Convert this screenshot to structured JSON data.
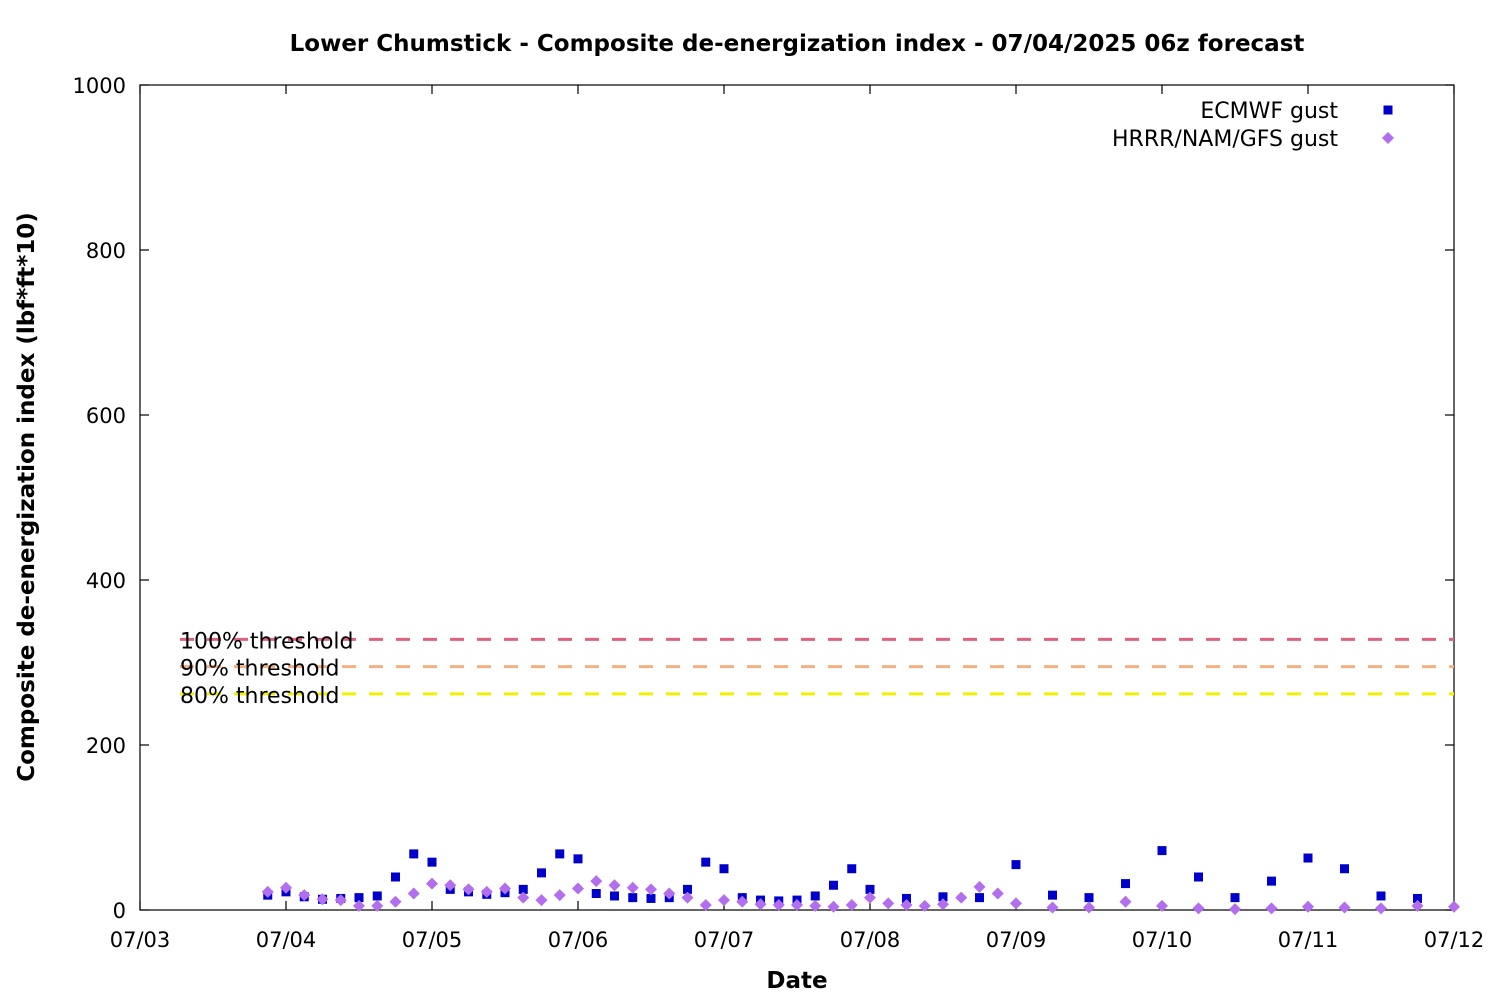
{
  "chart_data": {
    "type": "scatter",
    "title": "Lower Chumstick - Composite de-energization index - 07/04/2025 06z forecast",
    "xlabel": "Date",
    "ylabel": "Composite de-energization index (lbf*ft*10)",
    "xlim": [
      "07/03",
      "07/12"
    ],
    "ylim": [
      0,
      1000
    ],
    "x_ticks": [
      "07/03",
      "07/04",
      "07/05",
      "07/06",
      "07/07",
      "07/08",
      "07/09",
      "07/10",
      "07/11",
      "07/12"
    ],
    "y_ticks": [
      0,
      200,
      400,
      600,
      800,
      1000
    ],
    "grid": false,
    "legend_position": "top-right",
    "thresholds": [
      {
        "label": "100% threshold",
        "value": 328,
        "color": "#e06080"
      },
      {
        "label": "90% threshold",
        "value": 295,
        "color": "#f4b080"
      },
      {
        "label": "80% threshold",
        "value": 262,
        "color": "#f0f000"
      }
    ],
    "series": [
      {
        "name": "ECMWF gust",
        "color": "#0000cc",
        "marker": "square",
        "x": [
          "07/03 21:00",
          "07/04 00:00",
          "07/04 03:00",
          "07/04 06:00",
          "07/04 09:00",
          "07/04 12:00",
          "07/04 15:00",
          "07/04 18:00",
          "07/04 21:00",
          "07/05 00:00",
          "07/05 03:00",
          "07/05 06:00",
          "07/05 09:00",
          "07/05 12:00",
          "07/05 15:00",
          "07/05 18:00",
          "07/05 21:00",
          "07/06 00:00",
          "07/06 03:00",
          "07/06 06:00",
          "07/06 09:00",
          "07/06 12:00",
          "07/06 15:00",
          "07/06 18:00",
          "07/06 21:00",
          "07/07 00:00",
          "07/07 03:00",
          "07/07 06:00",
          "07/07 09:00",
          "07/07 12:00",
          "07/07 15:00",
          "07/07 18:00",
          "07/07 21:00",
          "07/08 00:00",
          "07/08 06:00",
          "07/08 12:00",
          "07/08 18:00",
          "07/09 00:00",
          "07/09 06:00",
          "07/09 12:00",
          "07/09 18:00",
          "07/10 00:00",
          "07/10 06:00",
          "07/10 12:00",
          "07/10 18:00",
          "07/11 00:00",
          "07/11 06:00",
          "07/11 12:00",
          "07/11 18:00"
        ],
        "values": [
          18,
          22,
          16,
          13,
          14,
          15,
          17,
          40,
          68,
          58,
          25,
          22,
          19,
          21,
          25,
          45,
          68,
          62,
          20,
          17,
          15,
          14,
          15,
          25,
          58,
          50,
          15,
          12,
          11,
          12,
          17,
          30,
          50,
          25,
          14,
          16,
          15,
          55,
          18,
          15,
          32,
          72,
          40,
          15,
          35,
          63,
          50,
          17,
          14
        ]
      },
      {
        "name": "HRRR/NAM/GFS gust",
        "color": "#b36ef0",
        "marker": "diamond",
        "x": [
          "07/03 21:00",
          "07/04 00:00",
          "07/04 03:00",
          "07/04 06:00",
          "07/04 09:00",
          "07/04 12:00",
          "07/04 15:00",
          "07/04 18:00",
          "07/04 21:00",
          "07/05 00:00",
          "07/05 03:00",
          "07/05 06:00",
          "07/05 09:00",
          "07/05 12:00",
          "07/05 15:00",
          "07/05 18:00",
          "07/05 21:00",
          "07/06 00:00",
          "07/06 03:00",
          "07/06 06:00",
          "07/06 09:00",
          "07/06 12:00",
          "07/06 15:00",
          "07/06 18:00",
          "07/06 21:00",
          "07/07 00:00",
          "07/07 03:00",
          "07/07 06:00",
          "07/07 09:00",
          "07/07 12:00",
          "07/07 15:00",
          "07/07 18:00",
          "07/07 21:00",
          "07/08 00:00",
          "07/08 03:00",
          "07/08 06:00",
          "07/08 09:00",
          "07/08 12:00",
          "07/08 15:00",
          "07/08 18:00",
          "07/08 21:00",
          "07/09 00:00",
          "07/09 06:00",
          "07/09 12:00",
          "07/09 18:00",
          "07/10 00:00",
          "07/10 06:00",
          "07/10 12:00",
          "07/10 18:00",
          "07/11 00:00",
          "07/11 06:00",
          "07/11 12:00",
          "07/11 18:00",
          "07/12 00:00"
        ],
        "values": [
          22,
          27,
          18,
          13,
          12,
          5,
          5,
          10,
          20,
          32,
          30,
          25,
          22,
          26,
          15,
          12,
          18,
          26,
          35,
          30,
          27,
          25,
          20,
          15,
          6,
          12,
          10,
          7,
          6,
          6,
          5,
          4,
          6,
          15,
          8,
          6,
          5,
          7,
          15,
          28,
          20,
          8,
          3,
          3,
          10,
          5,
          2,
          1,
          2,
          4,
          3,
          2,
          5,
          4
        ]
      }
    ]
  }
}
